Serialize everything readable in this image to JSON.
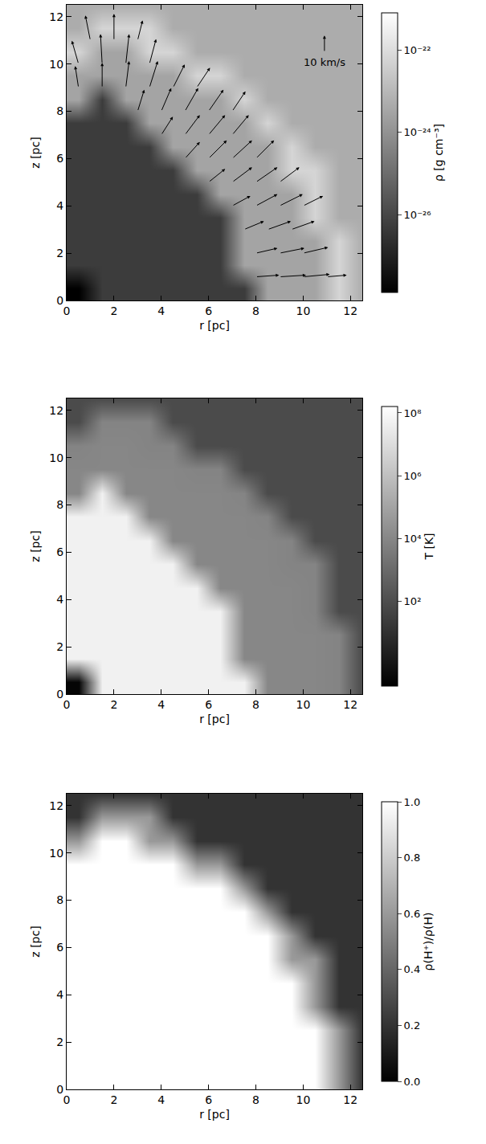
{
  "chart_data": [
    {
      "type": "heatmap",
      "log": true,
      "x_label": "r [pc]",
      "y_label": "z [pc]",
      "xlim": [
        0,
        12.5
      ],
      "ylim": [
        0,
        12.5
      ],
      "xticks": [
        0,
        2,
        4,
        6,
        8,
        10,
        12
      ],
      "yticks": [
        0,
        2,
        4,
        6,
        8,
        10,
        12
      ],
      "x": [
        0.5,
        1.5,
        2.5,
        3.5,
        4.5,
        5.5,
        6.5,
        7.5,
        8.5,
        9.5,
        10.5,
        11.5,
        12.5
      ],
      "y": [
        0.5,
        1.5,
        2.5,
        3.5,
        4.5,
        5.5,
        6.5,
        7.5,
        8.5,
        9.5,
        10.5,
        11.5,
        12.5
      ],
      "z": [
        [
          1.3e-28,
          5e-27,
          5e-27,
          5e-27,
          5e-27,
          5e-27,
          5e-27,
          5e-27,
          3e-24,
          3e-24,
          3e-24,
          6e-23,
          5e-24
        ],
        [
          5e-27,
          5e-27,
          5e-27,
          5e-27,
          5e-27,
          5e-27,
          5e-27,
          3e-24,
          3e-24,
          3e-24,
          3e-24,
          6e-23,
          5e-24
        ],
        [
          5e-27,
          5e-27,
          5e-27,
          5e-27,
          5e-27,
          5e-27,
          5e-27,
          3e-24,
          3e-24,
          3e-24,
          3e-24,
          6e-23,
          5e-24
        ],
        [
          5e-27,
          5e-27,
          5e-27,
          5e-27,
          5e-27,
          5e-27,
          5e-27,
          3e-24,
          3e-24,
          3e-24,
          6e-23,
          5e-24,
          5e-24
        ],
        [
          5e-27,
          5e-27,
          5e-27,
          5e-27,
          5e-27,
          5e-27,
          3e-24,
          3e-24,
          3e-24,
          3e-24,
          6e-23,
          5e-24,
          5e-24
        ],
        [
          5e-27,
          5e-27,
          5e-27,
          5e-27,
          5e-27,
          3e-24,
          3e-24,
          3e-24,
          3e-24,
          6e-23,
          6e-23,
          5e-24,
          5e-24
        ],
        [
          5e-27,
          5e-27,
          5e-27,
          5e-27,
          3e-24,
          3e-24,
          3e-24,
          3e-24,
          3e-24,
          6e-23,
          5e-24,
          5e-24,
          5e-24
        ],
        [
          5e-27,
          5e-27,
          5e-27,
          3e-24,
          3e-24,
          3e-24,
          3e-24,
          3e-24,
          6e-23,
          5e-24,
          5e-24,
          5e-24,
          5e-24
        ],
        [
          3e-24,
          5e-27,
          3e-24,
          3e-24,
          3e-24,
          3e-24,
          3e-24,
          6e-23,
          5e-24,
          5e-24,
          5e-24,
          5e-24,
          5e-24
        ],
        [
          3e-24,
          3e-24,
          3e-24,
          3e-24,
          3e-24,
          6e-23,
          6e-23,
          5e-24,
          5e-24,
          5e-24,
          5e-24,
          5e-24,
          5e-24
        ],
        [
          6e-23,
          3e-24,
          3e-24,
          6e-23,
          6e-23,
          5e-24,
          5e-24,
          5e-24,
          5e-24,
          5e-24,
          5e-24,
          5e-24,
          5e-24
        ],
        [
          5e-24,
          6e-23,
          6e-23,
          6e-23,
          5e-24,
          5e-24,
          5e-24,
          5e-24,
          5e-24,
          5e-24,
          5e-24,
          5e-24,
          5e-24
        ],
        [
          5e-24,
          5e-24,
          5e-24,
          5e-24,
          5e-24,
          5e-24,
          5e-24,
          5e-24,
          5e-24,
          5e-24,
          5e-24,
          5e-24,
          5e-24
        ]
      ],
      "colorbar": {
        "title": "ρ [g cm⁻³]",
        "range": [
          1.3e-28,
          8e-22
        ],
        "ticks": [
          {
            "value": 1e-26,
            "label": "10⁻²⁶"
          },
          {
            "value": 1e-24,
            "label": "10⁻²⁴"
          },
          {
            "value": 1e-22,
            "label": "10⁻²²"
          }
        ]
      },
      "vectors": [
        {
          "x": 8,
          "y": 1,
          "u": 14,
          "v": 1
        },
        {
          "x": 9,
          "y": 1,
          "u": 16,
          "v": 1
        },
        {
          "x": 10,
          "y": 1,
          "u": 16,
          "v": 1.5
        },
        {
          "x": 11,
          "y": 1,
          "u": 12,
          "v": 1
        },
        {
          "x": 8,
          "y": 2,
          "u": 13,
          "v": 3
        },
        {
          "x": 9,
          "y": 2,
          "u": 15,
          "v": 3
        },
        {
          "x": 10,
          "y": 2,
          "u": 15,
          "v": 3.5
        },
        {
          "x": 7.5,
          "y": 3,
          "u": 12,
          "v": 5
        },
        {
          "x": 8.5,
          "y": 3,
          "u": 14,
          "v": 5
        },
        {
          "x": 9.5,
          "y": 3,
          "u": 14,
          "v": 5
        },
        {
          "x": 7,
          "y": 4,
          "u": 11,
          "v": 6
        },
        {
          "x": 8,
          "y": 4,
          "u": 13,
          "v": 7
        },
        {
          "x": 9,
          "y": 4,
          "u": 14,
          "v": 7
        },
        {
          "x": 10,
          "y": 4,
          "u": 12,
          "v": 6
        },
        {
          "x": 6,
          "y": 5,
          "u": 10,
          "v": 8
        },
        {
          "x": 7,
          "y": 5,
          "u": 12,
          "v": 9
        },
        {
          "x": 8,
          "y": 5,
          "u": 13,
          "v": 9
        },
        {
          "x": 9,
          "y": 5,
          "u": 12,
          "v": 9
        },
        {
          "x": 5,
          "y": 6,
          "u": 9,
          "v": 10
        },
        {
          "x": 6,
          "y": 6,
          "u": 11,
          "v": 11
        },
        {
          "x": 7,
          "y": 6,
          "u": 12,
          "v": 11
        },
        {
          "x": 8,
          "y": 6,
          "u": 11,
          "v": 11
        },
        {
          "x": 4,
          "y": 7,
          "u": 7,
          "v": 11
        },
        {
          "x": 5,
          "y": 7,
          "u": 9,
          "v": 12
        },
        {
          "x": 6,
          "y": 7,
          "u": 10,
          "v": 12
        },
        {
          "x": 7,
          "y": 7,
          "u": 10,
          "v": 12
        },
        {
          "x": 3,
          "y": 8,
          "u": 4,
          "v": 13
        },
        {
          "x": 4,
          "y": 8,
          "u": 6,
          "v": 14
        },
        {
          "x": 5,
          "y": 8,
          "u": 8,
          "v": 14
        },
        {
          "x": 6,
          "y": 8,
          "u": 9,
          "v": 13
        },
        {
          "x": 7,
          "y": 8,
          "u": 8,
          "v": 12
        },
        {
          "x": 0.5,
          "y": 9,
          "u": -2,
          "v": 13
        },
        {
          "x": 1.5,
          "y": 9,
          "u": 0,
          "v": 15
        },
        {
          "x": 2.5,
          "y": 9,
          "u": 2,
          "v": 16
        },
        {
          "x": 3.5,
          "y": 9,
          "u": 5,
          "v": 16
        },
        {
          "x": 4.5,
          "y": 9,
          "u": 7,
          "v": 14
        },
        {
          "x": 5.5,
          "y": 9,
          "u": 8,
          "v": 12
        },
        {
          "x": 0.5,
          "y": 10,
          "u": -4,
          "v": 14
        },
        {
          "x": 1.5,
          "y": 10,
          "u": -1,
          "v": 18
        },
        {
          "x": 2.5,
          "y": 10,
          "u": 2,
          "v": 18
        },
        {
          "x": 3.5,
          "y": 10,
          "u": 4,
          "v": 15
        },
        {
          "x": 1,
          "y": 11,
          "u": -3,
          "v": 15
        },
        {
          "x": 2,
          "y": 11,
          "u": 0,
          "v": 16
        },
        {
          "x": 3,
          "y": 11,
          "u": 3,
          "v": 12
        }
      ],
      "vector_key": {
        "value": 10,
        "label": "10 km/s"
      }
    },
    {
      "type": "heatmap",
      "log": true,
      "x_label": "r [pc]",
      "y_label": "z [pc]",
      "xlim": [
        0,
        12.5
      ],
      "ylim": [
        0,
        12.5
      ],
      "xticks": [
        0,
        2,
        4,
        6,
        8,
        10,
        12
      ],
      "yticks": [
        0,
        2,
        4,
        6,
        8,
        10,
        12
      ],
      "x": [
        0.5,
        1.5,
        2.5,
        3.5,
        4.5,
        5.5,
        6.5,
        7.5,
        8.5,
        9.5,
        10.5,
        11.5,
        12.5
      ],
      "y": [
        0.5,
        1.5,
        2.5,
        3.5,
        4.5,
        5.5,
        6.5,
        7.5,
        8.5,
        9.5,
        10.5,
        11.5,
        12.5
      ],
      "z": [
        [
          0.3,
          50000000.0,
          50000000.0,
          50000000.0,
          50000000.0,
          50000000.0,
          50000000.0,
          50000000.0,
          10000.0,
          10000.0,
          10000.0,
          8000.0,
          80
        ],
        [
          50000000.0,
          50000000.0,
          50000000.0,
          50000000.0,
          50000000.0,
          50000000.0,
          50000000.0,
          10000.0,
          10000.0,
          10000.0,
          10000.0,
          8000.0,
          80
        ],
        [
          50000000.0,
          50000000.0,
          50000000.0,
          50000000.0,
          50000000.0,
          50000000.0,
          50000000.0,
          10000.0,
          10000.0,
          10000.0,
          10000.0,
          8000.0,
          80
        ],
        [
          50000000.0,
          50000000.0,
          50000000.0,
          50000000.0,
          50000000.0,
          50000000.0,
          50000000.0,
          10000.0,
          10000.0,
          10000.0,
          8000.0,
          80,
          80
        ],
        [
          50000000.0,
          50000000.0,
          50000000.0,
          50000000.0,
          50000000.0,
          50000000.0,
          10000.0,
          10000.0,
          10000.0,
          10000.0,
          8000.0,
          80,
          80
        ],
        [
          50000000.0,
          50000000.0,
          50000000.0,
          50000000.0,
          50000000.0,
          10000.0,
          10000.0,
          10000.0,
          10000.0,
          8000.0,
          8000.0,
          80,
          80
        ],
        [
          50000000.0,
          50000000.0,
          50000000.0,
          50000000.0,
          10000.0,
          10000.0,
          10000.0,
          10000.0,
          10000.0,
          8000.0,
          80,
          80,
          80
        ],
        [
          50000000.0,
          50000000.0,
          50000000.0,
          10000.0,
          10000.0,
          10000.0,
          10000.0,
          10000.0,
          8000.0,
          80,
          80,
          80,
          80
        ],
        [
          10000.0,
          50000000.0,
          10000.0,
          10000.0,
          10000.0,
          10000.0,
          10000.0,
          8000.0,
          80,
          80,
          80,
          80,
          80
        ],
        [
          10000.0,
          10000.0,
          10000.0,
          10000.0,
          10000.0,
          8000.0,
          8000.0,
          80,
          80,
          80,
          80,
          80,
          80
        ],
        [
          8000.0,
          10000.0,
          10000.0,
          8000.0,
          8000.0,
          80,
          80,
          80,
          80,
          80,
          80,
          80,
          80
        ],
        [
          80,
          8000.0,
          8000.0,
          8000.0,
          80,
          80,
          80,
          80,
          80,
          80,
          80,
          80,
          80
        ],
        [
          80,
          80,
          80,
          80,
          80,
          80,
          80,
          80,
          80,
          80,
          80,
          80,
          80
        ]
      ],
      "colorbar": {
        "title": "T [K]",
        "range": [
          0.2,
          160000000.0
        ],
        "ticks": [
          {
            "value": 100,
            "label": "10²"
          },
          {
            "value": 10000,
            "label": "10⁴"
          },
          {
            "value": 1000000,
            "label": "10⁶"
          },
          {
            "value": 100000000,
            "label": "10⁸"
          }
        ]
      }
    },
    {
      "type": "heatmap",
      "log": false,
      "x_label": "r [pc]",
      "y_label": "z [pc]",
      "xlim": [
        0,
        12.5
      ],
      "ylim": [
        0,
        12.5
      ],
      "xticks": [
        0,
        2,
        4,
        6,
        8,
        10,
        12
      ],
      "yticks": [
        0,
        2,
        4,
        6,
        8,
        10,
        12
      ],
      "x": [
        0.5,
        1.5,
        2.5,
        3.5,
        4.5,
        5.5,
        6.5,
        7.5,
        8.5,
        9.5,
        10.5,
        11.5,
        12.5
      ],
      "y": [
        0.5,
        1.5,
        2.5,
        3.5,
        4.5,
        5.5,
        6.5,
        7.5,
        8.5,
        9.5,
        10.5,
        11.5,
        12.5
      ],
      "z": [
        [
          1,
          1,
          1,
          1,
          1,
          1,
          1,
          1,
          1,
          1,
          1,
          0.6,
          0.2
        ],
        [
          1,
          1,
          1,
          1,
          1,
          1,
          1,
          1,
          1,
          1,
          1,
          0.6,
          0.2
        ],
        [
          1,
          1,
          1,
          1,
          1,
          1,
          1,
          1,
          1,
          1,
          1,
          0.6,
          0.2
        ],
        [
          1,
          1,
          1,
          1,
          1,
          1,
          1,
          1,
          1,
          1,
          0.6,
          0.2,
          0.2
        ],
        [
          1,
          1,
          1,
          1,
          1,
          1,
          1,
          1,
          1,
          1,
          0.6,
          0.2,
          0.2
        ],
        [
          1,
          1,
          1,
          1,
          1,
          1,
          1,
          1,
          1,
          0.6,
          0.6,
          0.2,
          0.2
        ],
        [
          1,
          1,
          1,
          1,
          1,
          1,
          1,
          1,
          1,
          0.6,
          0.2,
          0.2,
          0.2
        ],
        [
          1,
          1,
          1,
          1,
          1,
          1,
          1,
          1,
          0.6,
          0.2,
          0.2,
          0.2,
          0.2
        ],
        [
          1,
          1,
          1,
          1,
          1,
          1,
          1,
          0.6,
          0.2,
          0.2,
          0.2,
          0.2,
          0.2
        ],
        [
          1,
          1,
          1,
          1,
          1,
          0.6,
          0.6,
          0.2,
          0.2,
          0.2,
          0.2,
          0.2,
          0.2
        ],
        [
          0.6,
          1,
          1,
          0.6,
          0.6,
          0.2,
          0.2,
          0.2,
          0.2,
          0.2,
          0.2,
          0.2,
          0.2
        ],
        [
          0.2,
          0.6,
          0.6,
          0.6,
          0.2,
          0.2,
          0.2,
          0.2,
          0.2,
          0.2,
          0.2,
          0.2,
          0.2
        ],
        [
          0.2,
          0.2,
          0.2,
          0.2,
          0.2,
          0.2,
          0.2,
          0.2,
          0.2,
          0.2,
          0.2,
          0.2,
          0.2
        ]
      ],
      "colorbar": {
        "title": "ρ(H⁺)/ρ(H)",
        "range": [
          0,
          1
        ],
        "ticks": [
          {
            "value": 0,
            "label": "0.0"
          },
          0.2,
          0.4,
          0.6,
          0.8,
          {
            "value": 1,
            "label": "1.0"
          }
        ]
      }
    }
  ]
}
